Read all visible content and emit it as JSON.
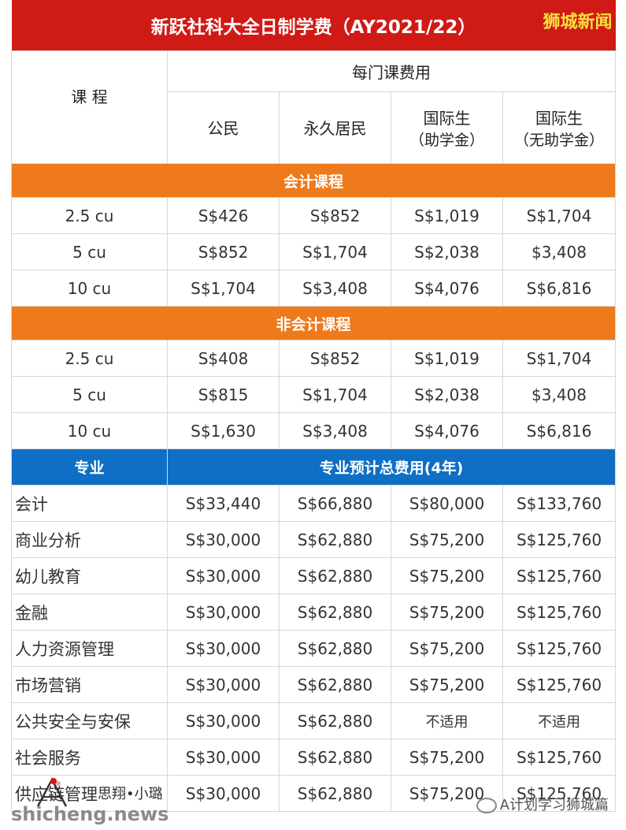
{
  "title": "新跃社科大全日制学费（AY2021/22）",
  "brand": "狮城新闻",
  "header": {
    "course": "课 程",
    "per_course_fee": "每门课费用",
    "col1": "公民",
    "col2": "永久居民",
    "col3_line1": "国际生",
    "col3_line2": "（助学金）",
    "col4_line1": "国际生",
    "col4_line2": "（无助学金）"
  },
  "sections": {
    "accounting": "会计课程",
    "non_accounting": "非会计课程",
    "major": "专业",
    "major_total": "专业预计总费用(4年)"
  },
  "accounting_rows": [
    {
      "unit": "2.5 cu",
      "c1": "S$426",
      "c2": "S$852",
      "c3": "S$1,019",
      "c4": "S$1,704"
    },
    {
      "unit": "5 cu",
      "c1": "S$852",
      "c2": "S$1,704",
      "c3": "S$2,038",
      "c4": "$3,408"
    },
    {
      "unit": "10 cu",
      "c1": "S$1,704",
      "c2": "S$3,408",
      "c3": "S$4,076",
      "c4": "S$6,816"
    }
  ],
  "non_accounting_rows": [
    {
      "unit": "2.5 cu",
      "c1": "S$408",
      "c2": "S$852",
      "c3": "S$1,019",
      "c4": "S$1,704"
    },
    {
      "unit": "5 cu",
      "c1": "S$815",
      "c2": "S$1,704",
      "c3": "S$2,038",
      "c4": "$3,408"
    },
    {
      "unit": "10 cu",
      "c1": "S$1,630",
      "c2": "S$3,408",
      "c3": "S$4,076",
      "c4": "S$6,816"
    }
  ],
  "major_rows": [
    {
      "name": "会计",
      "c1": "S$33,440",
      "c2": "S$66,880",
      "c3": "S$80,000",
      "c4": "S$133,760"
    },
    {
      "name": "商业分析",
      "c1": "S$30,000",
      "c2": "S$62,880",
      "c3": "S$75,200",
      "c4": "S$125,760"
    },
    {
      "name": "幼儿教育",
      "c1": "S$30,000",
      "c2": "S$62,880",
      "c3": "S$75,200",
      "c4": "S$125,760"
    },
    {
      "name": "金融",
      "c1": "S$30,000",
      "c2": "S$62,880",
      "c3": "S$75,200",
      "c4": "S$125,760"
    },
    {
      "name": "人力资源管理",
      "c1": "S$30,000",
      "c2": "S$62,880",
      "c3": "S$75,200",
      "c4": "S$125,760"
    },
    {
      "name": "市场营销",
      "c1": "S$30,000",
      "c2": "S$62,880",
      "c3": "S$75,200",
      "c4": "S$125,760"
    },
    {
      "name": "公共安全与安保",
      "c1": "S$30,000",
      "c2": "S$62,880",
      "c3": "不适用",
      "c4": "不适用"
    },
    {
      "name": "社会服务",
      "c1": "S$30,000",
      "c2": "S$62,880",
      "c3": "S$75,200",
      "c4": "S$125,760"
    },
    {
      "name": "供应链管理",
      "c1": "S$30,000",
      "c2": "S$62,880",
      "c3": "S$75,200",
      "c4": "S$125,760"
    }
  ],
  "footer": {
    "author": "思翔•小璐",
    "site": "shicheng.news",
    "wechat": "A计划学习狮城篇"
  },
  "colors": {
    "title_bg": "#d01a15",
    "brand": "#f7e23a",
    "section_orange": "#ee7a1c",
    "section_blue": "#0e6fc4"
  }
}
